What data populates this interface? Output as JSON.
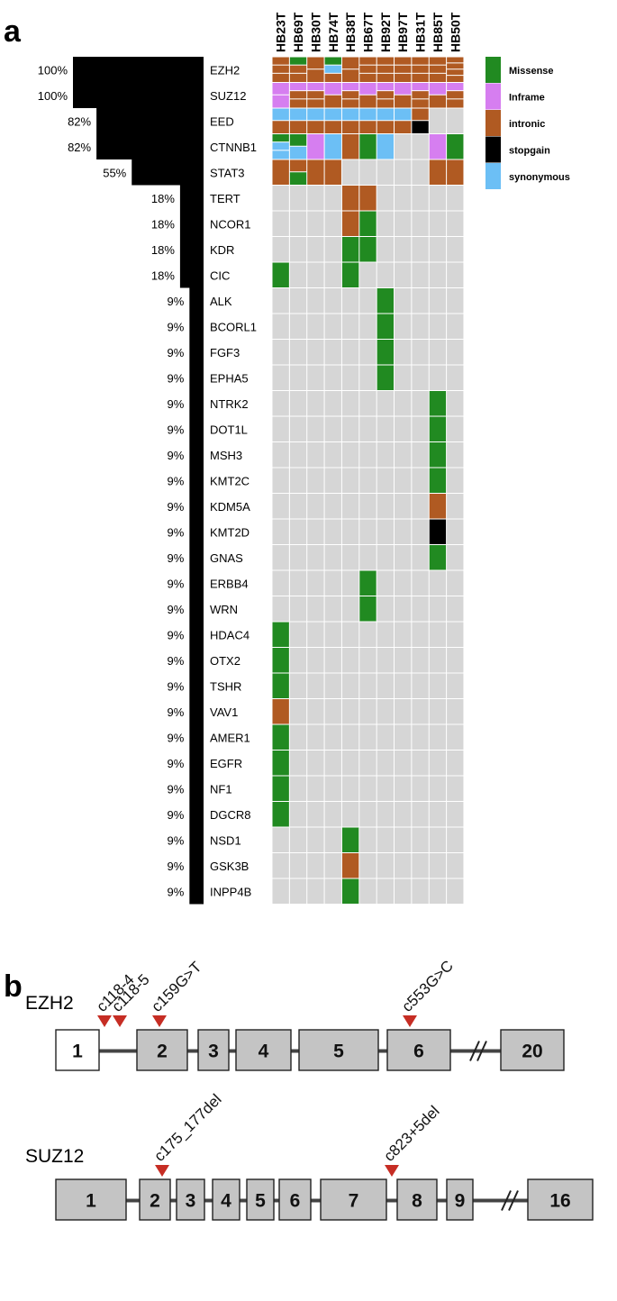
{
  "panels": {
    "a": "a",
    "b": "b"
  },
  "colors": {
    "Missense": "#218a21",
    "Inframe": "#d67ef0",
    "intronic": "#b05a22",
    "stopgain": "#000000",
    "synonymous": "#6cbff5",
    "empty": "#d6d6d6",
    "bar": "#000000",
    "exon_fill": "#c4c4c4",
    "exon_first_fill": "#ffffff",
    "marker": "#c62d24"
  },
  "legend": [
    {
      "type": "Missense",
      "label": "Missense"
    },
    {
      "type": "Inframe",
      "label": "Inframe"
    },
    {
      "type": "intronic",
      "label": "intronic"
    },
    {
      "type": "stopgain",
      "label": "stopgain"
    },
    {
      "type": "synonymous",
      "label": "synonymous"
    }
  ],
  "samples": [
    "HB23T",
    "HB69T",
    "HB30T",
    "HB74T",
    "HB38T",
    "HB67T",
    "HB92T",
    "HB97T",
    "HB31T",
    "HB85T",
    "HB50T"
  ],
  "chart_data": {
    "type": "heatmap",
    "genes": [
      {
        "gene": "EZH2",
        "pct": "100%",
        "freq": 100,
        "cells": [
          [
            "intronic",
            "intronic",
            "intronic"
          ],
          [
            "Missense",
            "intronic",
            "intronic"
          ],
          [
            "intronic",
            "intronic"
          ],
          [
            "Missense",
            "synonymous",
            "intronic"
          ],
          [
            "intronic",
            "intronic"
          ],
          [
            "intronic",
            "intronic",
            "intronic"
          ],
          [
            "intronic",
            "intronic",
            "intronic"
          ],
          [
            "intronic",
            "intronic",
            "intronic"
          ],
          [
            "intronic",
            "intronic",
            "intronic"
          ],
          [
            "intronic",
            "intronic",
            "intronic"
          ],
          [
            "intronic",
            "intronic",
            "intronic",
            "intronic"
          ]
        ]
      },
      {
        "gene": "SUZ12",
        "pct": "100%",
        "freq": 100,
        "cells": [
          [
            "Inframe",
            "Inframe"
          ],
          [
            "Inframe",
            "intronic",
            "intronic"
          ],
          [
            "Inframe",
            "intronic",
            "intronic"
          ],
          [
            "Inframe",
            "intronic"
          ],
          [
            "Inframe",
            "intronic",
            "intronic"
          ],
          [
            "Inframe",
            "intronic"
          ],
          [
            "Inframe",
            "intronic",
            "intronic"
          ],
          [
            "Inframe",
            "intronic"
          ],
          [
            "Inframe",
            "intronic",
            "intronic"
          ],
          [
            "Inframe",
            "intronic"
          ],
          [
            "Inframe",
            "intronic",
            "intronic"
          ]
        ]
      },
      {
        "gene": "EED",
        "pct": "82%",
        "freq": 82,
        "cells": [
          [
            "synonymous",
            "intronic"
          ],
          [
            "synonymous",
            "intronic"
          ],
          [
            "synonymous",
            "intronic"
          ],
          [
            "synonymous",
            "intronic"
          ],
          [
            "synonymous",
            "intronic"
          ],
          [
            "synonymous",
            "intronic"
          ],
          [
            "synonymous",
            "intronic"
          ],
          [
            "synonymous",
            "intronic"
          ],
          [
            "intronic",
            "stopgain"
          ],
          [],
          []
        ]
      },
      {
        "gene": "CTNNB1",
        "pct": "82%",
        "freq": 82,
        "cells": [
          [
            "Missense",
            "synonymous",
            "synonymous"
          ],
          [
            "Missense",
            "synonymous"
          ],
          [
            "Inframe"
          ],
          [
            "synonymous"
          ],
          [
            "intronic"
          ],
          [
            "Missense"
          ],
          [
            "synonymous"
          ],
          [],
          [],
          [
            "Inframe"
          ],
          [
            "Missense"
          ]
        ]
      },
      {
        "gene": "STAT3",
        "pct": "55%",
        "freq": 55,
        "cells": [
          [
            "intronic"
          ],
          [
            "intronic",
            "Missense"
          ],
          [
            "intronic"
          ],
          [
            "intronic"
          ],
          [],
          [],
          [],
          [],
          [],
          [
            "intronic"
          ],
          [
            "intronic"
          ]
        ]
      },
      {
        "gene": "TERT",
        "pct": "18%",
        "freq": 18,
        "cells": [
          [],
          [],
          [],
          [],
          [
            "intronic"
          ],
          [
            "intronic"
          ],
          [],
          [],
          [],
          [],
          []
        ]
      },
      {
        "gene": "NCOR1",
        "pct": "18%",
        "freq": 18,
        "cells": [
          [],
          [],
          [],
          [],
          [
            "intronic"
          ],
          [
            "Missense"
          ],
          [],
          [],
          [],
          [],
          []
        ]
      },
      {
        "gene": "KDR",
        "pct": "18%",
        "freq": 18,
        "cells": [
          [],
          [],
          [],
          [],
          [
            "Missense"
          ],
          [
            "Missense"
          ],
          [],
          [],
          [],
          [],
          []
        ]
      },
      {
        "gene": "CIC",
        "pct": "18%",
        "freq": 18,
        "cells": [
          [
            "Missense"
          ],
          [],
          [],
          [],
          [
            "Missense"
          ],
          [],
          [],
          [],
          [],
          [],
          []
        ]
      },
      {
        "gene": "ALK",
        "pct": "9%",
        "freq": 9,
        "cells": [
          [],
          [],
          [],
          [],
          [],
          [],
          [
            "Missense"
          ],
          [],
          [],
          [],
          []
        ]
      },
      {
        "gene": "BCORL1",
        "pct": "9%",
        "freq": 9,
        "cells": [
          [],
          [],
          [],
          [],
          [],
          [],
          [
            "Missense"
          ],
          [],
          [],
          [],
          []
        ]
      },
      {
        "gene": "FGF3",
        "pct": "9%",
        "freq": 9,
        "cells": [
          [],
          [],
          [],
          [],
          [],
          [],
          [
            "Missense"
          ],
          [],
          [],
          [],
          []
        ]
      },
      {
        "gene": "EPHA5",
        "pct": "9%",
        "freq": 9,
        "cells": [
          [],
          [],
          [],
          [],
          [],
          [],
          [
            "Missense"
          ],
          [],
          [],
          [],
          []
        ]
      },
      {
        "gene": "NTRK2",
        "pct": "9%",
        "freq": 9,
        "cells": [
          [],
          [],
          [],
          [],
          [],
          [],
          [],
          [],
          [],
          [
            "Missense"
          ],
          []
        ]
      },
      {
        "gene": "DOT1L",
        "pct": "9%",
        "freq": 9,
        "cells": [
          [],
          [],
          [],
          [],
          [],
          [],
          [],
          [],
          [],
          [
            "Missense"
          ],
          []
        ]
      },
      {
        "gene": "MSH3",
        "pct": "9%",
        "freq": 9,
        "cells": [
          [],
          [],
          [],
          [],
          [],
          [],
          [],
          [],
          [],
          [
            "Missense"
          ],
          []
        ]
      },
      {
        "gene": "KMT2C",
        "pct": "9%",
        "freq": 9,
        "cells": [
          [],
          [],
          [],
          [],
          [],
          [],
          [],
          [],
          [],
          [
            "Missense"
          ],
          []
        ]
      },
      {
        "gene": "KDM5A",
        "pct": "9%",
        "freq": 9,
        "cells": [
          [],
          [],
          [],
          [],
          [],
          [],
          [],
          [],
          [],
          [
            "intronic"
          ],
          []
        ]
      },
      {
        "gene": "KMT2D",
        "pct": "9%",
        "freq": 9,
        "cells": [
          [],
          [],
          [],
          [],
          [],
          [],
          [],
          [],
          [],
          [
            "stopgain"
          ],
          []
        ]
      },
      {
        "gene": "GNAS",
        "pct": "9%",
        "freq": 9,
        "cells": [
          [],
          [],
          [],
          [],
          [],
          [],
          [],
          [],
          [],
          [
            "Missense"
          ],
          []
        ]
      },
      {
        "gene": "ERBB4",
        "pct": "9%",
        "freq": 9,
        "cells": [
          [],
          [],
          [],
          [],
          [],
          [
            "Missense"
          ],
          [],
          [],
          [],
          [],
          []
        ]
      },
      {
        "gene": "WRN",
        "pct": "9%",
        "freq": 9,
        "cells": [
          [],
          [],
          [],
          [],
          [],
          [
            "Missense"
          ],
          [],
          [],
          [],
          [],
          []
        ]
      },
      {
        "gene": "HDAC4",
        "pct": "9%",
        "freq": 9,
        "cells": [
          [
            "Missense"
          ],
          [],
          [],
          [],
          [],
          [],
          [],
          [],
          [],
          [],
          []
        ]
      },
      {
        "gene": "OTX2",
        "pct": "9%",
        "freq": 9,
        "cells": [
          [
            "Missense"
          ],
          [],
          [],
          [],
          [],
          [],
          [],
          [],
          [],
          [],
          []
        ]
      },
      {
        "gene": "TSHR",
        "pct": "9%",
        "freq": 9,
        "cells": [
          [
            "Missense"
          ],
          [],
          [],
          [],
          [],
          [],
          [],
          [],
          [],
          [],
          []
        ]
      },
      {
        "gene": "VAV1",
        "pct": "9%",
        "freq": 9,
        "cells": [
          [
            "intronic"
          ],
          [],
          [],
          [],
          [],
          [],
          [],
          [],
          [],
          [],
          []
        ]
      },
      {
        "gene": "AMER1",
        "pct": "9%",
        "freq": 9,
        "cells": [
          [
            "Missense"
          ],
          [],
          [],
          [],
          [],
          [],
          [],
          [],
          [],
          [],
          []
        ]
      },
      {
        "gene": "EGFR",
        "pct": "9%",
        "freq": 9,
        "cells": [
          [
            "Missense"
          ],
          [],
          [],
          [],
          [],
          [],
          [],
          [],
          [],
          [],
          []
        ]
      },
      {
        "gene": "NF1",
        "pct": "9%",
        "freq": 9,
        "cells": [
          [
            "Missense"
          ],
          [],
          [],
          [],
          [],
          [],
          [],
          [],
          [],
          [],
          []
        ]
      },
      {
        "gene": "DGCR8",
        "pct": "9%",
        "freq": 9,
        "cells": [
          [
            "Missense"
          ],
          [],
          [],
          [],
          [],
          [],
          [],
          [],
          [],
          [],
          []
        ]
      },
      {
        "gene": "NSD1",
        "pct": "9%",
        "freq": 9,
        "cells": [
          [],
          [],
          [],
          [],
          [
            "Missense"
          ],
          [],
          [],
          [],
          [],
          [],
          []
        ]
      },
      {
        "gene": "GSK3B",
        "pct": "9%",
        "freq": 9,
        "cells": [
          [],
          [],
          [],
          [],
          [
            "intronic"
          ],
          [],
          [],
          [],
          [],
          [],
          []
        ]
      },
      {
        "gene": "INPP4B",
        "pct": "9%",
        "freq": 9,
        "cells": [
          [],
          [],
          [],
          [],
          [
            "Missense"
          ],
          [],
          [],
          [],
          [],
          [],
          []
        ]
      }
    ]
  },
  "gene_structures": [
    {
      "gene": "EZH2",
      "exons": [
        {
          "label": "1",
          "first": true
        },
        {
          "label": "2"
        },
        {
          "label": "3"
        },
        {
          "label": "4"
        },
        {
          "label": "5"
        },
        {
          "label": "6"
        },
        {
          "label": "20"
        }
      ],
      "break_after": 5,
      "mutations": [
        {
          "label": "c118-4",
          "exon_index": 1,
          "side": "before",
          "offset": 2
        },
        {
          "label": "c118-5",
          "exon_index": 1,
          "side": "before",
          "offset": 1
        },
        {
          "label": "c159G>T",
          "exon_index": 1,
          "side": "inside",
          "offset": 0
        },
        {
          "label": "c553G>C",
          "exon_index": 5,
          "side": "inside",
          "offset": 0
        }
      ]
    },
    {
      "gene": "SUZ12",
      "exons": [
        {
          "label": "1"
        },
        {
          "label": "2"
        },
        {
          "label": "3"
        },
        {
          "label": "4"
        },
        {
          "label": "5"
        },
        {
          "label": "6"
        },
        {
          "label": "7"
        },
        {
          "label": "8"
        },
        {
          "label": "9"
        },
        {
          "label": "16"
        }
      ],
      "break_after": 8,
      "mutations": [
        {
          "label": "c175_177del",
          "exon_index": 1,
          "side": "inside",
          "offset": 0
        },
        {
          "label": "c823+5del",
          "exon_index": 7,
          "side": "before",
          "offset": 0
        }
      ]
    }
  ]
}
